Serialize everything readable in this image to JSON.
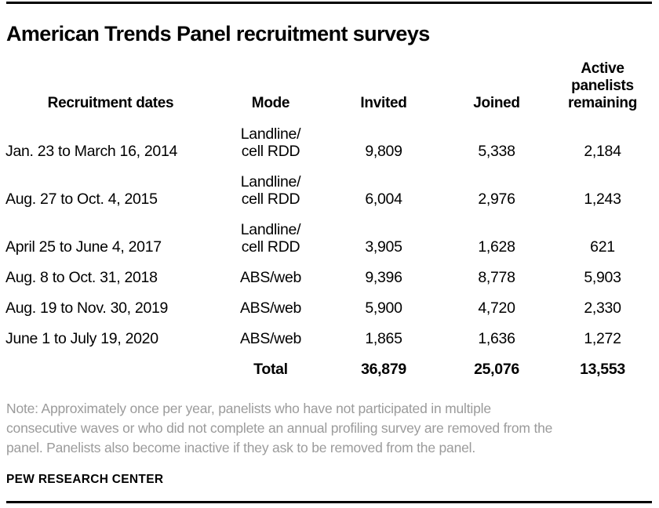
{
  "page": {
    "title": "American Trends Panel recruitment surveys",
    "source": "PEW RESEARCH CENTER"
  },
  "table": {
    "headers": [
      "Recruitment dates",
      "Mode",
      "Invited",
      "Joined",
      "Active panelists remaining"
    ],
    "rows": [
      {
        "dates": "Jan. 23 to March 16, 2014",
        "mode": "Landline/\ncell RDD",
        "invited": "9,809",
        "joined": "5,338",
        "remaining": "2,184"
      },
      {
        "dates": "Aug. 27 to Oct. 4, 2015",
        "mode": "Landline/\ncell RDD",
        "invited": "6,004",
        "joined": "2,976",
        "remaining": "1,243"
      },
      {
        "dates": "April 25 to June 4, 2017",
        "mode": "Landline/\ncell RDD",
        "invited": "3,905",
        "joined": "1,628",
        "remaining": "621"
      },
      {
        "dates": "Aug. 8 to Oct. 31, 2018",
        "mode": "ABS/web",
        "invited": "9,396",
        "joined": "8,778",
        "remaining": "5,903"
      },
      {
        "dates": "Aug. 19 to Nov. 30, 2019",
        "mode": "ABS/web",
        "invited": "5,900",
        "joined": "4,720",
        "remaining": "2,330"
      },
      {
        "dates": "June 1 to July 19, 2020",
        "mode": "ABS/web",
        "invited": "1,865",
        "joined": "1,636",
        "remaining": "1,272"
      }
    ],
    "total": {
      "label": "Total",
      "invited": "36,879",
      "joined": "25,076",
      "remaining": "13,553"
    }
  },
  "note": {
    "lines": [
      "Note: Approximately once per year, panelists who have not participated in multiple",
      "consecutive waves or who did not complete an annual profiling survey are removed from the",
      "panel. Panelists also become inactive if they ask to be removed from the panel."
    ]
  },
  "colors": {
    "text": "#000000",
    "note_text": "#9b9b9b",
    "rule": "#000000",
    "background": "#ffffff"
  },
  "chart_data": {
    "type": "table",
    "title": "American Trends Panel recruitment surveys",
    "columns": [
      "Recruitment dates",
      "Mode",
      "Invited",
      "Joined",
      "Active panelists remaining"
    ],
    "rows": [
      [
        "Jan. 23 to March 16, 2014",
        "Landline/cell RDD",
        9809,
        5338,
        2184
      ],
      [
        "Aug. 27 to Oct. 4, 2015",
        "Landline/cell RDD",
        6004,
        2976,
        1243
      ],
      [
        "April 25 to June 4, 2017",
        "Landline/cell RDD",
        3905,
        1628,
        621
      ],
      [
        "Aug. 8 to Oct. 31, 2018",
        "ABS/web",
        9396,
        8778,
        5903
      ],
      [
        "Aug. 19 to Nov. 30, 2019",
        "ABS/web",
        5900,
        4720,
        2330
      ],
      [
        "June 1 to July 19, 2020",
        "ABS/web",
        1865,
        1636,
        1272
      ]
    ],
    "totals": {
      "label": "Total",
      "invited": 36879,
      "joined": 25076,
      "remaining": 13553
    },
    "note": "Note: Approximately once per year, panelists who have not participated in multiple consecutive waves or who did not complete an annual profiling survey are removed from the panel. Panelists also become inactive if they ask to be removed from the panel.",
    "source": "PEW RESEARCH CENTER"
  }
}
